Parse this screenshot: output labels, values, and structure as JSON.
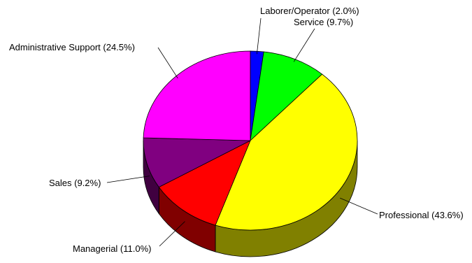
{
  "chart_data": {
    "type": "pie",
    "style": "3d",
    "title": "",
    "slices": [
      {
        "category": "Laborer/Operator",
        "value": 2.0,
        "label": "Laborer/Operator (2.0%)",
        "color": "#0000ff"
      },
      {
        "category": "Service",
        "value": 9.7,
        "label": "Service (9.7%)",
        "color": "#00ff00"
      },
      {
        "category": "Professional",
        "value": 43.6,
        "label": "Professional (43.6%)",
        "color": "#ffff00"
      },
      {
        "category": "Managerial",
        "value": 11.0,
        "label": "Managerial (11.0%)",
        "color": "#ff0000"
      },
      {
        "category": "Sales",
        "value": 9.2,
        "label": "Sales (9.2%)",
        "color": "#800080"
      },
      {
        "category": "Administrative Support",
        "value": 24.5,
        "label": "Administrative Support (24.5%)",
        "color": "#ff00ff"
      }
    ],
    "legend": "none"
  }
}
